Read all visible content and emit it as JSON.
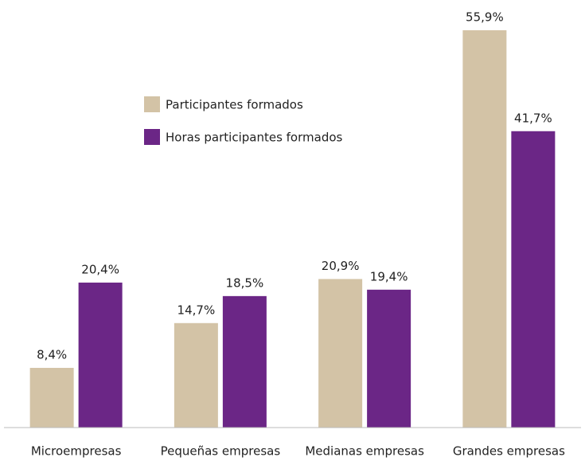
{
  "chart_data": {
    "type": "bar",
    "categories": [
      "Microempresas",
      "Pequeñas empresas",
      "Medianas empresas",
      "Grandes empresas"
    ],
    "series": [
      {
        "name": "Participantes formados",
        "color": "#d3c3a6",
        "values": [
          8.4,
          14.7,
          20.9,
          55.9
        ],
        "value_labels": [
          "8,4%",
          "14,7%",
          "20,9%",
          "55,9%"
        ]
      },
      {
        "name": "Horas participantes formados",
        "color": "#6b2686",
        "values": [
          20.4,
          18.5,
          19.4,
          41.7
        ],
        "value_labels": [
          "20,4%",
          "18,5%",
          "19,4%",
          "41,7%"
        ]
      }
    ]
  }
}
